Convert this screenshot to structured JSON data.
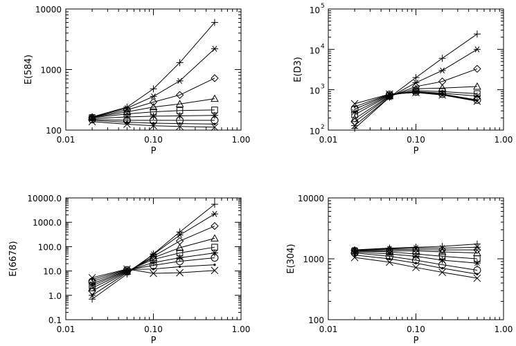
{
  "chart_data": [
    {
      "type": "line",
      "ylabel": "E(584)",
      "xlabel": "P",
      "x_scale": "log",
      "y_scale": "log",
      "xlim": [
        0.01,
        1.0
      ],
      "ylim": [
        100,
        10000
      ],
      "x_tick_values": [
        0.01,
        0.1,
        1.0
      ],
      "x_tick_labels": [
        "0.01",
        "0.10",
        "1.00"
      ],
      "y_tick_values": [
        100,
        1000,
        10000
      ],
      "y_tick_labels": [
        "100",
        "1000",
        "10000"
      ],
      "grid": false,
      "legend": "none",
      "x": [
        0.02,
        0.05,
        0.1,
        0.2,
        0.5
      ],
      "series": [
        {
          "marker": "plus",
          "values": [
            165,
            240,
            480,
            1300,
            6000
          ]
        },
        {
          "marker": "asterisk",
          "values": [
            165,
            230,
            360,
            650,
            2200
          ]
        },
        {
          "marker": "diamond",
          "values": [
            163,
            215,
            290,
            380,
            720
          ]
        },
        {
          "marker": "triangle",
          "values": [
            162,
            200,
            240,
            270,
            330
          ]
        },
        {
          "marker": "square",
          "values": [
            160,
            185,
            200,
            210,
            215
          ]
        },
        {
          "marker": "star",
          "values": [
            155,
            165,
            170,
            172,
            175
          ]
        },
        {
          "marker": "circle",
          "values": [
            150,
            145,
            145,
            145,
            145
          ]
        },
        {
          "marker": "dot",
          "values": [
            145,
            135,
            130,
            128,
            126
          ]
        },
        {
          "marker": "x",
          "values": [
            138,
            125,
            118,
            115,
            112
          ]
        }
      ]
    },
    {
      "type": "line",
      "ylabel": "E(D3)",
      "xlabel": "P",
      "x_scale": "log",
      "y_scale": "log",
      "xlim": [
        0.01,
        1.0
      ],
      "ylim": [
        100,
        100000
      ],
      "x_tick_values": [
        0.01,
        0.1,
        1.0
      ],
      "x_tick_labels": [
        "0.01",
        "0.10",
        "1.00"
      ],
      "y_tick_values": [
        100,
        1000,
        10000,
        100000
      ],
      "y_tick_labels": [
        "10",
        "10",
        "10",
        "10"
      ],
      "y_tick_exponents": [
        "2",
        "3",
        "4",
        "5"
      ],
      "grid": false,
      "legend": "none",
      "x": [
        0.02,
        0.05,
        0.1,
        0.2,
        0.5
      ],
      "series": [
        {
          "marker": "plus",
          "values": [
            110,
            650,
            2000,
            6000,
            24000
          ]
        },
        {
          "marker": "asterisk",
          "values": [
            130,
            650,
            1500,
            3000,
            10000
          ]
        },
        {
          "marker": "diamond",
          "values": [
            160,
            680,
            1200,
            1600,
            3300
          ]
        },
        {
          "marker": "triangle",
          "values": [
            190,
            700,
            1050,
            1100,
            1200
          ]
        },
        {
          "marker": "square",
          "values": [
            240,
            720,
            950,
            900,
            800
          ]
        },
        {
          "marker": "star",
          "values": [
            280,
            740,
            900,
            820,
            700
          ]
        },
        {
          "marker": "circle",
          "values": [
            330,
            760,
            880,
            780,
            560
          ]
        },
        {
          "marker": "dot",
          "values": [
            380,
            770,
            860,
            760,
            540
          ]
        },
        {
          "marker": "x",
          "values": [
            450,
            780,
            850,
            740,
            520
          ]
        }
      ]
    },
    {
      "type": "line",
      "ylabel": "E(6678)",
      "xlabel": "P",
      "x_scale": "log",
      "y_scale": "log",
      "xlim": [
        0.01,
        1.0
      ],
      "ylim": [
        0.1,
        10000
      ],
      "x_tick_values": [
        0.01,
        0.1,
        1.0
      ],
      "x_tick_labels": [
        "0.01",
        "0.10",
        "1.00"
      ],
      "y_tick_values": [
        0.1,
        1,
        10,
        100,
        1000,
        10000
      ],
      "y_tick_labels": [
        "0.1",
        "1.0",
        "10.0",
        "100.0",
        "1000.0",
        "10000.0"
      ],
      "grid": false,
      "legend": "none",
      "x": [
        0.02,
        0.05,
        0.1,
        0.2,
        0.5
      ],
      "series": [
        {
          "marker": "plus",
          "values": [
            0.7,
            7.5,
            50,
            400,
            5500
          ]
        },
        {
          "marker": "asterisk",
          "values": [
            1.0,
            8.5,
            48,
            300,
            2200
          ]
        },
        {
          "marker": "diamond",
          "values": [
            1.5,
            9.0,
            40,
            170,
            700
          ]
        },
        {
          "marker": "triangle",
          "values": [
            2.0,
            9.5,
            35,
            90,
            220
          ]
        },
        {
          "marker": "square",
          "values": [
            2.5,
            10.0,
            30,
            55,
            95
          ]
        },
        {
          "marker": "star",
          "values": [
            3.0,
            10.5,
            22,
            35,
            55
          ]
        },
        {
          "marker": "circle",
          "values": [
            3.7,
            11.0,
            17,
            25,
            35
          ]
        },
        {
          "marker": "dot",
          "values": [
            4.5,
            11.5,
            12,
            15,
            18
          ]
        },
        {
          "marker": "x",
          "values": [
            5.3,
            12.0,
            8,
            8.5,
            10.5
          ]
        }
      ]
    },
    {
      "type": "line",
      "ylabel": "E(304)",
      "xlabel": "P",
      "x_scale": "log",
      "y_scale": "log",
      "xlim": [
        0.01,
        1.0
      ],
      "ylim": [
        100,
        10000
      ],
      "x_tick_values": [
        0.01,
        0.1,
        1.0
      ],
      "x_tick_labels": [
        "0.01",
        "0.10",
        "1.00"
      ],
      "y_tick_values": [
        100,
        1000,
        10000
      ],
      "y_tick_labels": [
        "100",
        "1000",
        "10000"
      ],
      "grid": false,
      "legend": "none",
      "x": [
        0.02,
        0.05,
        0.1,
        0.2,
        0.5
      ],
      "series": [
        {
          "marker": "plus",
          "values": [
            1400,
            1500,
            1550,
            1600,
            1750
          ]
        },
        {
          "marker": "asterisk",
          "values": [
            1400,
            1450,
            1500,
            1500,
            1550
          ]
        },
        {
          "marker": "diamond",
          "values": [
            1380,
            1420,
            1420,
            1400,
            1400
          ]
        },
        {
          "marker": "triangle",
          "values": [
            1360,
            1350,
            1350,
            1300,
            1250
          ]
        },
        {
          "marker": "square",
          "values": [
            1340,
            1300,
            1200,
            1100,
            1000
          ]
        },
        {
          "marker": "star",
          "values": [
            1300,
            1200,
            1100,
            950,
            850
          ]
        },
        {
          "marker": "circle",
          "values": [
            1250,
            1100,
            950,
            800,
            650
          ]
        },
        {
          "marker": "dot",
          "values": [
            1150,
            1000,
            850,
            700,
            560
          ]
        },
        {
          "marker": "x",
          "values": [
            1050,
            880,
            720,
            600,
            480
          ]
        }
      ]
    }
  ]
}
